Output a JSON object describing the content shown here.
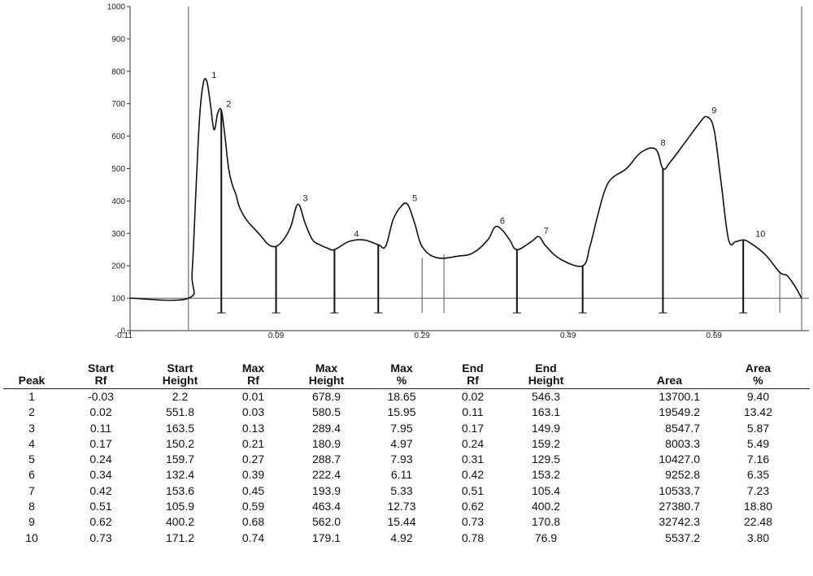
{
  "chart_data": {
    "type": "line",
    "title": "",
    "xlabel": "",
    "ylabel": "",
    "ylim": [
      0,
      1000
    ],
    "xlim": [
      -0.11,
      0.82
    ],
    "y_ticks": [
      "0",
      "100",
      "200",
      "300",
      "400",
      "500",
      "600",
      "700",
      "800",
      "900",
      "1000"
    ],
    "x_ticks": [
      {
        "value": -0.11,
        "label": "-0.11"
      },
      {
        "value": 0.09,
        "label": "0.09"
      },
      {
        "value": 0.29,
        "label": "0.29"
      },
      {
        "value": 0.49,
        "label": "0.49"
      },
      {
        "value": 0.69,
        "label": "0.69"
      }
    ],
    "baseline_y": 100,
    "series": [
      {
        "x": [
          -0.11,
          -0.03,
          -0.025,
          -0.02,
          -0.015,
          -0.01,
          -0.005,
          0.0,
          0.005,
          0.01,
          0.015,
          0.02,
          0.025,
          0.03,
          0.035,
          0.04,
          0.05,
          0.06,
          0.07,
          0.08,
          0.09,
          0.1,
          0.11,
          0.12,
          0.13,
          0.14,
          0.15,
          0.16,
          0.17,
          0.19,
          0.21,
          0.23,
          0.24,
          0.25,
          0.26,
          0.27,
          0.28,
          0.29,
          0.31,
          0.34,
          0.36,
          0.38,
          0.39,
          0.4,
          0.41,
          0.42,
          0.44,
          0.45,
          0.46,
          0.48,
          0.51,
          0.52,
          0.53,
          0.54,
          0.55,
          0.57,
          0.59,
          0.61,
          0.62,
          0.63,
          0.65,
          0.67,
          0.68,
          0.69,
          0.7,
          0.71,
          0.72,
          0.73,
          0.74,
          0.76,
          0.78,
          0.79,
          0.8,
          0.81
        ],
        "y": [
          100,
          100,
          180,
          420,
          650,
          760,
          770,
          700,
          620,
          670,
          680,
          600,
          500,
          450,
          420,
          380,
          340,
          315,
          290,
          265,
          260,
          280,
          320,
          390,
          330,
          280,
          265,
          255,
          250,
          275,
          280,
          265,
          260,
          340,
          380,
          390,
          330,
          260,
          225,
          230,
          240,
          280,
          320,
          310,
          280,
          250,
          275,
          290,
          260,
          220,
          200,
          260,
          350,
          430,
          470,
          500,
          550,
          560,
          500,
          520,
          580,
          640,
          660,
          620,
          450,
          280,
          275,
          280,
          270,
          235,
          180,
          170,
          140,
          100
        ]
      }
    ],
    "peak_labels": [
      {
        "label": "1",
        "x": -0.005,
        "y": 770
      },
      {
        "label": "2",
        "x": 0.015,
        "y": 680
      },
      {
        "label": "3",
        "x": 0.12,
        "y": 390
      },
      {
        "label": "4",
        "x": 0.19,
        "y": 280
      },
      {
        "label": "5",
        "x": 0.27,
        "y": 390
      },
      {
        "label": "6",
        "x": 0.39,
        "y": 320
      },
      {
        "label": "7",
        "x": 0.45,
        "y": 290
      },
      {
        "label": "8",
        "x": 0.61,
        "y": 560
      },
      {
        "label": "9",
        "x": 0.68,
        "y": 660
      },
      {
        "label": "10",
        "x": 0.74,
        "y": 280
      }
    ],
    "drop_lines": [
      {
        "x": 0.015,
        "y": 680
      },
      {
        "x": 0.09,
        "y": 260
      },
      {
        "x": 0.17,
        "y": 250
      },
      {
        "x": 0.23,
        "y": 265
      },
      {
        "x": 0.42,
        "y": 250
      },
      {
        "x": 0.51,
        "y": 200
      },
      {
        "x": 0.62,
        "y": 500
      },
      {
        "x": 0.73,
        "y": 280
      }
    ],
    "thin_lines": [
      {
        "x": 0.29,
        "y": 225
      },
      {
        "x": 0.32,
        "y": 235
      },
      {
        "x": 0.78,
        "y": 180
      }
    ]
  },
  "table": {
    "columns": [
      {
        "l1": "",
        "l2": "Peak"
      },
      {
        "l1": "Start",
        "l2": "Rf"
      },
      {
        "l1": "Start",
        "l2": "Height"
      },
      {
        "l1": "Max",
        "l2": "Rf"
      },
      {
        "l1": "Max",
        "l2": "Height"
      },
      {
        "l1": "Max",
        "l2": "%"
      },
      {
        "l1": "End",
        "l2": "Rf"
      },
      {
        "l1": "End",
        "l2": "Height"
      },
      {
        "l1": "",
        "l2": "Area"
      },
      {
        "l1": "Area",
        "l2": "%"
      }
    ],
    "rows": [
      [
        "1",
        "-0.03",
        "2.2",
        "0.01",
        "678.9",
        "18.65",
        "0.02",
        "546.3",
        "13700.1",
        "9.40"
      ],
      [
        "2",
        "0.02",
        "551.8",
        "0.03",
        "580.5",
        "15.95",
        "0.11",
        "163.1",
        "19549.2",
        "13.42"
      ],
      [
        "3",
        "0.11",
        "163.5",
        "0.13",
        "289.4",
        "7.95",
        "0.17",
        "149.9",
        "8547.7",
        "5.87"
      ],
      [
        "4",
        "0.17",
        "150.2",
        "0.21",
        "180.9",
        "4.97",
        "0.24",
        "159.2",
        "8003.3",
        "5.49"
      ],
      [
        "5",
        "0.24",
        "159.7",
        "0.27",
        "288.7",
        "7.93",
        "0.31",
        "129.5",
        "10427.0",
        "7.16"
      ],
      [
        "6",
        "0.34",
        "132.4",
        "0.39",
        "222.4",
        "6.11",
        "0.42",
        "153.2",
        "9252.8",
        "6.35"
      ],
      [
        "7",
        "0.42",
        "153.6",
        "0.45",
        "193.9",
        "5.33",
        "0.51",
        "105.4",
        "10533.7",
        "7.23"
      ],
      [
        "8",
        "0.51",
        "105.9",
        "0.59",
        "463.4",
        "12.73",
        "0.62",
        "400.2",
        "27380.7",
        "18.80"
      ],
      [
        "9",
        "0.62",
        "400.2",
        "0.68",
        "562.0",
        "15.44",
        "0.73",
        "170.8",
        "32742.3",
        "22.48"
      ],
      [
        "10",
        "0.73",
        "171.2",
        "0.74",
        "179.1",
        "4.92",
        "0.78",
        "76.9",
        "5537.2",
        "3.80"
      ]
    ]
  },
  "colors": {
    "curve": "#111111",
    "axis": "#333333",
    "grid": "#555555"
  }
}
